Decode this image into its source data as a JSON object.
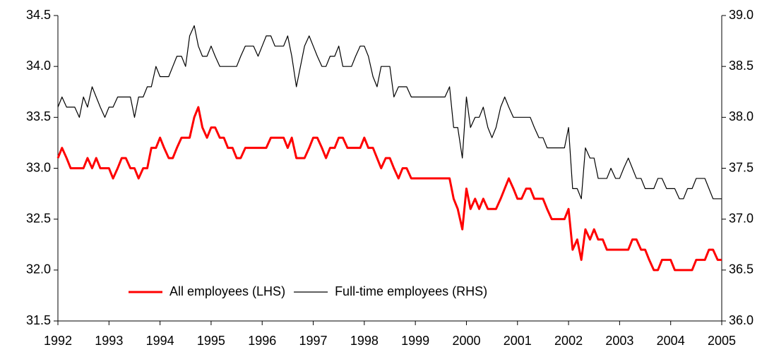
{
  "chart_data": {
    "type": "line",
    "x": [
      1992,
      1992.08,
      1992.17,
      1992.25,
      1992.33,
      1992.42,
      1992.5,
      1992.58,
      1992.67,
      1992.75,
      1992.83,
      1992.92,
      1993,
      1993.08,
      1993.17,
      1993.25,
      1993.33,
      1993.42,
      1993.5,
      1993.58,
      1993.67,
      1993.75,
      1993.83,
      1993.92,
      1994,
      1994.08,
      1994.17,
      1994.25,
      1994.33,
      1994.42,
      1994.5,
      1994.58,
      1994.67,
      1994.75,
      1994.83,
      1994.92,
      1995,
      1995.08,
      1995.17,
      1995.25,
      1995.33,
      1995.42,
      1995.5,
      1995.58,
      1995.67,
      1995.75,
      1995.83,
      1995.92,
      1996,
      1996.08,
      1996.17,
      1996.25,
      1996.33,
      1996.42,
      1996.5,
      1996.58,
      1996.67,
      1996.75,
      1996.83,
      1996.92,
      1997,
      1997.08,
      1997.17,
      1997.25,
      1997.33,
      1997.42,
      1997.5,
      1997.58,
      1997.67,
      1997.75,
      1997.83,
      1997.92,
      1998,
      1998.08,
      1998.17,
      1998.25,
      1998.33,
      1998.42,
      1998.5,
      1998.58,
      1998.67,
      1998.75,
      1998.83,
      1998.92,
      1999,
      1999.08,
      1999.17,
      1999.25,
      1999.33,
      1999.42,
      1999.5,
      1999.58,
      1999.67,
      1999.75,
      1999.83,
      1999.92,
      2000,
      2000.08,
      2000.17,
      2000.25,
      2000.33,
      2000.42,
      2000.5,
      2000.58,
      2000.67,
      2000.75,
      2000.83,
      2000.92,
      2001,
      2001.08,
      2001.17,
      2001.25,
      2001.33,
      2001.42,
      2001.5,
      2001.58,
      2001.67,
      2001.75,
      2001.83,
      2001.92,
      2002,
      2002.08,
      2002.17,
      2002.25,
      2002.33,
      2002.42,
      2002.5,
      2002.58,
      2002.67,
      2002.75,
      2002.83,
      2002.92,
      2003,
      2003.08,
      2003.17,
      2003.25,
      2003.33,
      2003.42,
      2003.5,
      2003.58,
      2003.67,
      2003.75,
      2003.83,
      2003.92,
      2004,
      2004.08,
      2004.17,
      2004.25,
      2004.33,
      2004.42,
      2004.5,
      2004.58,
      2004.67,
      2004.75,
      2004.83,
      2004.92,
      2005
    ],
    "series": [
      {
        "name": "All employees (LHS)",
        "color": "#ff0000",
        "values": [
          33.1,
          33.2,
          33.1,
          33.0,
          33.0,
          33.0,
          33.0,
          33.1,
          33.0,
          33.1,
          33.0,
          33.0,
          33.0,
          32.9,
          33.0,
          33.1,
          33.1,
          33.0,
          33.0,
          32.9,
          33.0,
          33.0,
          33.2,
          33.2,
          33.3,
          33.2,
          33.1,
          33.1,
          33.2,
          33.3,
          33.3,
          33.3,
          33.5,
          33.6,
          33.4,
          33.3,
          33.4,
          33.4,
          33.3,
          33.3,
          33.2,
          33.2,
          33.1,
          33.1,
          33.2,
          33.2,
          33.2,
          33.2,
          33.2,
          33.2,
          33.3,
          33.3,
          33.3,
          33.3,
          33.2,
          33.3,
          33.1,
          33.1,
          33.1,
          33.2,
          33.3,
          33.3,
          33.2,
          33.1,
          33.2,
          33.2,
          33.3,
          33.3,
          33.2,
          33.2,
          33.2,
          33.2,
          33.3,
          33.2,
          33.2,
          33.1,
          33.0,
          33.1,
          33.1,
          33.0,
          32.9,
          33.0,
          33.0,
          32.9,
          32.9,
          32.9,
          32.9,
          32.9,
          32.9,
          32.9,
          32.9,
          32.9,
          32.9,
          32.7,
          32.6,
          32.4,
          32.8,
          32.6,
          32.7,
          32.6,
          32.7,
          32.6,
          32.6,
          32.6,
          32.7,
          32.8,
          32.9,
          32.8,
          32.7,
          32.7,
          32.8,
          32.8,
          32.7,
          32.7,
          32.7,
          32.6,
          32.5,
          32.5,
          32.5,
          32.5,
          32.6,
          32.2,
          32.3,
          32.1,
          32.4,
          32.3,
          32.4,
          32.3,
          32.3,
          32.2,
          32.2,
          32.2,
          32.2,
          32.2,
          32.2,
          32.3,
          32.3,
          32.2,
          32.2,
          32.1,
          32.0,
          32.0,
          32.1,
          32.1,
          32.1,
          32.0,
          32.0,
          32.0,
          32.0,
          32.0,
          32.1,
          32.1,
          32.1,
          32.2,
          32.2,
          32.1,
          32.1
        ]
      },
      {
        "name": "Full-time employees (RHS)",
        "color": "#000000",
        "axis": "y2",
        "values": [
          38.1,
          38.2,
          38.1,
          38.1,
          38.1,
          38.0,
          38.2,
          38.1,
          38.3,
          38.2,
          38.1,
          38.0,
          38.1,
          38.1,
          38.2,
          38.2,
          38.2,
          38.2,
          38.0,
          38.2,
          38.2,
          38.3,
          38.3,
          38.5,
          38.4,
          38.4,
          38.4,
          38.5,
          38.6,
          38.6,
          38.5,
          38.8,
          38.9,
          38.7,
          38.6,
          38.6,
          38.7,
          38.6,
          38.5,
          38.5,
          38.5,
          38.5,
          38.5,
          38.6,
          38.7,
          38.7,
          38.7,
          38.6,
          38.7,
          38.8,
          38.8,
          38.7,
          38.7,
          38.7,
          38.8,
          38.6,
          38.3,
          38.5,
          38.7,
          38.8,
          38.7,
          38.6,
          38.5,
          38.5,
          38.6,
          38.6,
          38.7,
          38.5,
          38.5,
          38.5,
          38.6,
          38.7,
          38.7,
          38.6,
          38.4,
          38.3,
          38.5,
          38.5,
          38.5,
          38.2,
          38.3,
          38.3,
          38.3,
          38.2,
          38.2,
          38.2,
          38.2,
          38.2,
          38.2,
          38.2,
          38.2,
          38.2,
          38.3,
          37.9,
          37.9,
          37.6,
          38.2,
          37.9,
          38.0,
          38.0,
          38.1,
          37.9,
          37.8,
          37.9,
          38.1,
          38.2,
          38.1,
          38.0,
          38.0,
          38.0,
          38.0,
          38.0,
          37.9,
          37.8,
          37.8,
          37.7,
          37.7,
          37.7,
          37.7,
          37.7,
          37.9,
          37.3,
          37.3,
          37.2,
          37.7,
          37.6,
          37.6,
          37.4,
          37.4,
          37.4,
          37.5,
          37.4,
          37.4,
          37.5,
          37.6,
          37.5,
          37.4,
          37.4,
          37.3,
          37.3,
          37.3,
          37.4,
          37.4,
          37.3,
          37.3,
          37.3,
          37.2,
          37.2,
          37.3,
          37.3,
          37.4,
          37.4,
          37.4,
          37.3,
          37.2,
          37.2,
          37.2
        ]
      }
    ],
    "xlim": [
      1992,
      2005
    ],
    "xticks": [
      1992,
      1993,
      1994,
      1995,
      1996,
      1997,
      1998,
      1999,
      2000,
      2001,
      2002,
      2003,
      2004,
      2005
    ],
    "ylim": [
      31.5,
      34.5
    ],
    "yticks": [
      31.5,
      {
        "value": 32,
        "label": "32.0"
      },
      32.5,
      {
        "value": 33,
        "label": "33.0"
      },
      33.5,
      {
        "value": 34,
        "label": "34.0"
      },
      34.5
    ],
    "y2lim": [
      36,
      39
    ],
    "y2ticks": [
      {
        "value": 36,
        "label": "36.0"
      },
      36.5,
      {
        "value": 37,
        "label": "37.0"
      },
      37.5,
      {
        "value": 38,
        "label": "38.0"
      },
      38.5,
      {
        "value": 39,
        "label": "39.0"
      }
    ],
    "grid": false,
    "legend": "bottom"
  }
}
